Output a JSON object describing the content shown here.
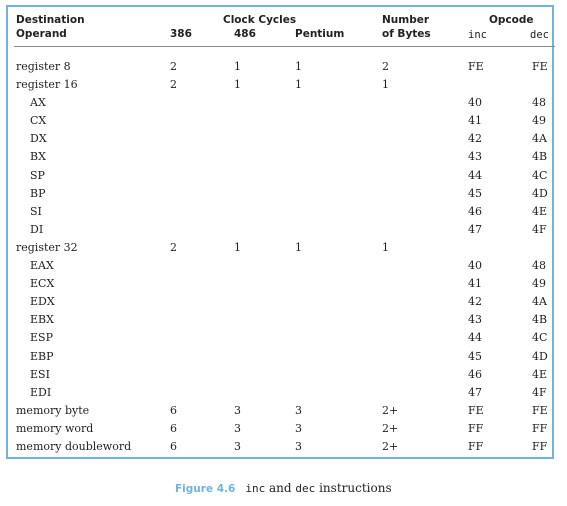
{
  "headers": {
    "destination": "Destination",
    "operand": "Operand",
    "clock_cycles": "Clock Cycles",
    "c386": "386",
    "c486": "486",
    "pentium": "Pentium",
    "number": "Number",
    "of_bytes": "of Bytes",
    "opcode": "Opcode",
    "inc": "inc",
    "dec": "dec"
  },
  "rows": [
    {
      "dest": "register 8",
      "c386": "2",
      "c486": "1",
      "pent": "1",
      "bytes": "2",
      "inc": "FE",
      "dec": "FE",
      "indent": false
    },
    {
      "dest": "register 16",
      "c386": "2",
      "c486": "1",
      "pent": "1",
      "bytes": "1",
      "inc": "",
      "dec": "",
      "indent": false
    },
    {
      "dest": "AX",
      "c386": "",
      "c486": "",
      "pent": "",
      "bytes": "",
      "inc": "40",
      "dec": "48",
      "indent": true
    },
    {
      "dest": "CX",
      "c386": "",
      "c486": "",
      "pent": "",
      "bytes": "",
      "inc": "41",
      "dec": "49",
      "indent": true
    },
    {
      "dest": "DX",
      "c386": "",
      "c486": "",
      "pent": "",
      "bytes": "",
      "inc": "42",
      "dec": "4A",
      "indent": true
    },
    {
      "dest": "BX",
      "c386": "",
      "c486": "",
      "pent": "",
      "bytes": "",
      "inc": "43",
      "dec": "4B",
      "indent": true
    },
    {
      "dest": "SP",
      "c386": "",
      "c486": "",
      "pent": "",
      "bytes": "",
      "inc": "44",
      "dec": "4C",
      "indent": true
    },
    {
      "dest": "BP",
      "c386": "",
      "c486": "",
      "pent": "",
      "bytes": "",
      "inc": "45",
      "dec": "4D",
      "indent": true
    },
    {
      "dest": "SI",
      "c386": "",
      "c486": "",
      "pent": "",
      "bytes": "",
      "inc": "46",
      "dec": "4E",
      "indent": true
    },
    {
      "dest": "DI",
      "c386": "",
      "c486": "",
      "pent": "",
      "bytes": "",
      "inc": "47",
      "dec": "4F",
      "indent": true
    },
    {
      "dest": "register 32",
      "c386": "2",
      "c486": "1",
      "pent": "1",
      "bytes": "1",
      "inc": "",
      "dec": "",
      "indent": false
    },
    {
      "dest": "EAX",
      "c386": "",
      "c486": "",
      "pent": "",
      "bytes": "",
      "inc": "40",
      "dec": "48",
      "indent": true
    },
    {
      "dest": "ECX",
      "c386": "",
      "c486": "",
      "pent": "",
      "bytes": "",
      "inc": "41",
      "dec": "49",
      "indent": true
    },
    {
      "dest": "EDX",
      "c386": "",
      "c486": "",
      "pent": "",
      "bytes": "",
      "inc": "42",
      "dec": "4A",
      "indent": true
    },
    {
      "dest": "EBX",
      "c386": "",
      "c486": "",
      "pent": "",
      "bytes": "",
      "inc": "43",
      "dec": "4B",
      "indent": true
    },
    {
      "dest": "ESP",
      "c386": "",
      "c486": "",
      "pent": "",
      "bytes": "",
      "inc": "44",
      "dec": "4C",
      "indent": true
    },
    {
      "dest": "EBP",
      "c386": "",
      "c486": "",
      "pent": "",
      "bytes": "",
      "inc": "45",
      "dec": "4D",
      "indent": true
    },
    {
      "dest": "ESI",
      "c386": "",
      "c486": "",
      "pent": "",
      "bytes": "",
      "inc": "46",
      "dec": "4E",
      "indent": true
    },
    {
      "dest": "EDI",
      "c386": "",
      "c486": "",
      "pent": "",
      "bytes": "",
      "inc": "47",
      "dec": "4F",
      "indent": true
    },
    {
      "dest": "memory byte",
      "c386": "6",
      "c486": "3",
      "pent": "3",
      "bytes": "2+",
      "inc": "FE",
      "dec": "FE",
      "indent": false
    },
    {
      "dest": "memory word",
      "c386": "6",
      "c486": "3",
      "pent": "3",
      "bytes": "2+",
      "inc": "FF",
      "dec": "FF",
      "indent": false
    },
    {
      "dest": "memory doubleword",
      "c386": "6",
      "c486": "3",
      "pent": "3",
      "bytes": "2+",
      "inc": "FF",
      "dec": "FF",
      "indent": false
    }
  ],
  "caption": {
    "label": "Figure 4.6",
    "inc": "inc",
    "and": " and ",
    "dec": "dec",
    "rest": " instructions"
  },
  "colors": {
    "accent": "#6fb4e0"
  }
}
